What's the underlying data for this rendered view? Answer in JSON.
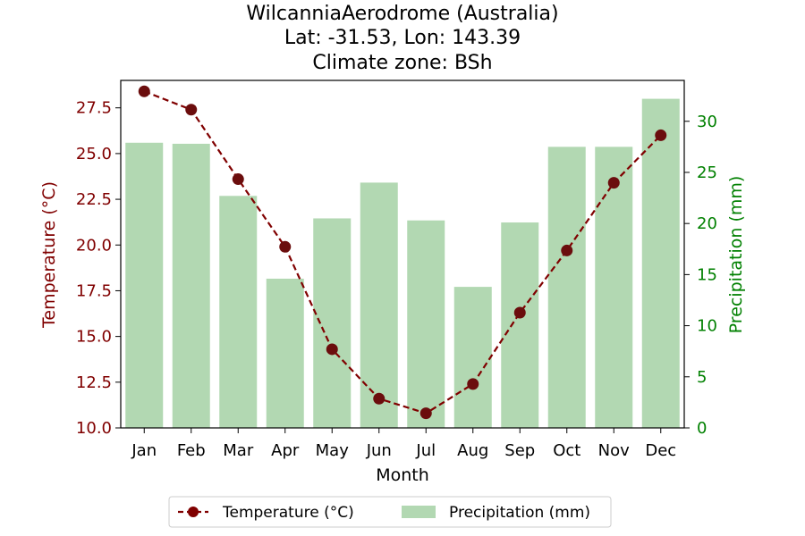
{
  "chart_data": {
    "type": "bar+line",
    "title": "WilcanniaAerodrome (Australia)",
    "subtitle_lines": [
      "Lat: -31.53, Lon: 143.39",
      "Climate zone: BSh"
    ],
    "xlabel": "Month",
    "categories": [
      "Jan",
      "Feb",
      "Mar",
      "Apr",
      "May",
      "Jun",
      "Jul",
      "Aug",
      "Sep",
      "Oct",
      "Nov",
      "Dec"
    ],
    "temperature": {
      "name": "Temperature (°C)",
      "axis_label": "Temperature (°C)",
      "values": [
        28.4,
        27.4,
        23.6,
        19.9,
        14.3,
        11.6,
        10.8,
        12.4,
        16.3,
        19.7,
        23.4,
        26.0
      ],
      "ylim": [
        10.0,
        29.0
      ],
      "ticks": [
        "10.0",
        "12.5",
        "15.0",
        "17.5",
        "20.0",
        "22.5",
        "25.0",
        "27.5"
      ],
      "color": "#800000",
      "style": "dashed line with circle markers"
    },
    "precipitation": {
      "name": "Precipitation (mm)",
      "axis_label": "Precipitation (mm)",
      "values": [
        27.9,
        27.8,
        22.7,
        14.6,
        20.5,
        24.0,
        20.3,
        13.8,
        20.1,
        27.5,
        27.5,
        32.2
      ],
      "ylim": [
        0,
        34
      ],
      "ticks": [
        "0",
        "5",
        "10",
        "15",
        "20",
        "25",
        "30"
      ],
      "color": "#b2d8b2",
      "axis_color": "#008000"
    },
    "legend": {
      "placement": "bottom-center",
      "entries": [
        "Temperature (°C)",
        "Precipitation (mm)"
      ]
    },
    "grid": false
  }
}
